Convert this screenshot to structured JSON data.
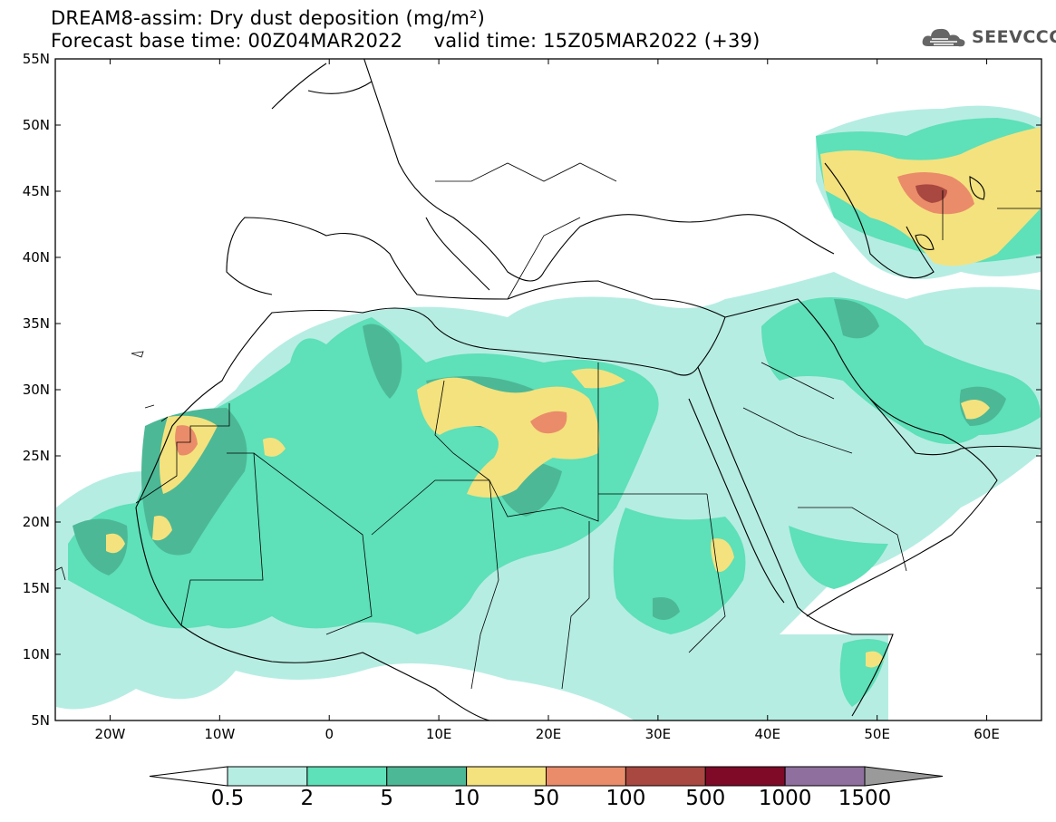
{
  "title": {
    "line1": "DREAM8-assim: Dry dust deposition (mg/m²)",
    "line2": "Forecast base time: 00Z04MAR2022     valid time: 15Z05MAR2022 (+39)"
  },
  "logo": {
    "text": "SEEVCCC",
    "icon": "cloud-icon"
  },
  "map": {
    "region": "North Africa, Middle East and Europe",
    "lat_ticks": [
      "55N",
      "50N",
      "45N",
      "40N",
      "35N",
      "30N",
      "25N",
      "20N",
      "15N",
      "10N",
      "5N"
    ],
    "lon_ticks": [
      "20W",
      "10W",
      "0",
      "10E",
      "20E",
      "30E",
      "40E",
      "50E",
      "60E"
    ],
    "extent": {
      "lon": [
        -25,
        65
      ],
      "lat": [
        5,
        55
      ]
    }
  },
  "legend": {
    "labels": [
      "0.5",
      "2",
      "5",
      "10",
      "50",
      "100",
      "500",
      "1000",
      "1500"
    ],
    "colors": [
      "#ffffff",
      "#b6ede3",
      "#5ee0b8",
      "#4cb896",
      "#f4e27e",
      "#ea8c6a",
      "#a84840",
      "#7e0a28",
      "#8f6f9e",
      "#9a9a9a"
    ]
  }
}
